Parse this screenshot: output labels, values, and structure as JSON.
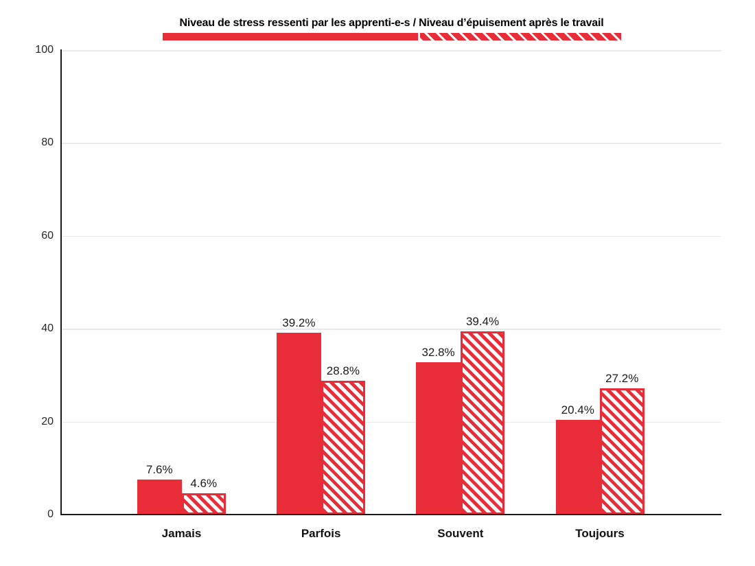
{
  "chart_data": {
    "type": "bar",
    "title": "Niveau de stress ressenti par les apprenti-e-s / Niveau d’épuisement après le travail",
    "categories": [
      "Jamais",
      "Parfois",
      "Souvent",
      "Toujours"
    ],
    "series": [
      {
        "name": "Niveau de stress ressenti par les apprenti-e-s",
        "style": "solid",
        "values": [
          7.6,
          39.2,
          32.8,
          20.4
        ]
      },
      {
        "name": "Niveau d’épuisement après le travail",
        "style": "hatched",
        "values": [
          4.6,
          28.8,
          39.4,
          27.2
        ]
      }
    ],
    "value_suffix": "%",
    "y_ticks": [
      0,
      20,
      40,
      60,
      80,
      100
    ],
    "ylim": [
      0,
      100
    ],
    "grid": true,
    "legend_position": "top",
    "colors": {
      "bar_red": "#e82c38",
      "grid": "#e9e9e9",
      "axis": "#1a1a1a",
      "background": "#ffffff"
    }
  }
}
